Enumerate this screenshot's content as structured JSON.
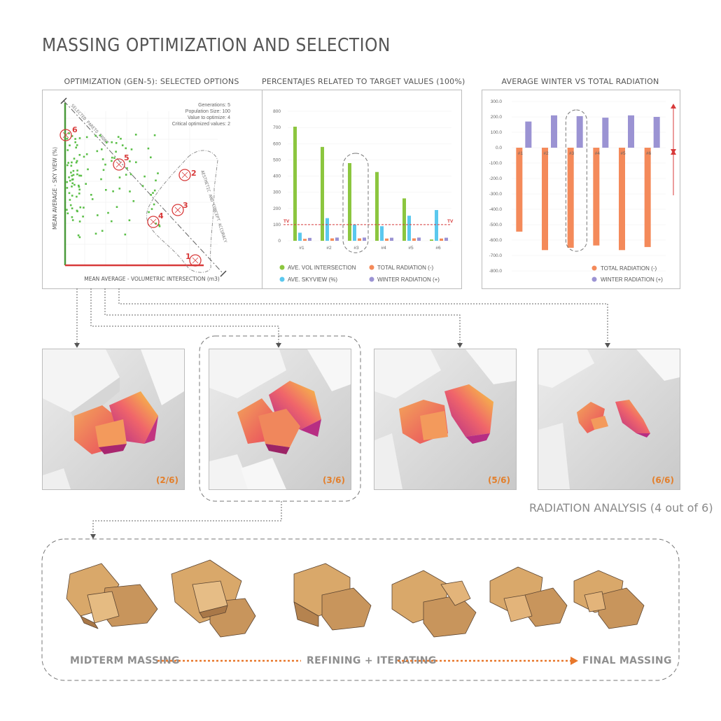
{
  "title": "MASSING OPTIMIZATION AND SELECTION",
  "panels": {
    "scatter": {
      "title": "OPTIMIZATION (GEN-5): SELECTED OPTIONS",
      "info": [
        "Generations: 5",
        "Population Size: 100",
        "Value to optimize: 4",
        "Critical optimized values: 2"
      ],
      "pareto_label": "SELECTED PARETO FRONT",
      "aesthetic_label": "AESTHETIC AND CONCEPT ACCURACY",
      "xlabel": "MEAN AVERAGE - VOLUMETRIC INTERSECTION (m3)",
      "ylabel": "MEAN AVERAGE - SKY VIEW (%)",
      "option_labels": [
        "1",
        "2",
        "3",
        "4",
        "5",
        "6"
      ]
    },
    "percent": {
      "title": "PERCENTAJES RELATED TO TARGET VALUES (100%)"
    },
    "radiation": {
      "title": "AVERAGE WINTER VS TOTAL RADIATION"
    }
  },
  "chart_data": [
    {
      "type": "bar",
      "title": "PERCENTAJES RELATED TO TARGET VALUES (100%)",
      "categories": [
        "#1",
        "#2",
        "#3",
        "#4",
        "#5",
        "#6"
      ],
      "series": [
        {
          "name": "AVE. VOL INTERSECTION",
          "values": [
            705,
            580,
            480,
            425,
            262,
            8
          ]
        },
        {
          "name": "AVE. SKYVIEW (%)",
          "values": [
            50,
            140,
            100,
            90,
            155,
            190
          ]
        },
        {
          "name": "TOTAL RADIATION (-)",
          "values": [
            12,
            15,
            15,
            14,
            15,
            14
          ]
        },
        {
          "name": "WINTER RADIATION (+)",
          "values": [
            18,
            20,
            20,
            19,
            20,
            19
          ]
        }
      ],
      "yticks": [
        0,
        100,
        200,
        300,
        400,
        500,
        600,
        700,
        800
      ],
      "ylim": [
        0,
        800
      ],
      "target_line": {
        "label": "TV",
        "value": 100
      },
      "legend": "bottom",
      "colors": [
        "#8cc63f",
        "#5bc8ee",
        "#f48a5a",
        "#9b93d3"
      ]
    },
    {
      "type": "bar",
      "title": "AVERAGE WINTER VS TOTAL RADIATION",
      "categories": [
        "#1",
        "#2",
        "#3",
        "#4",
        "#5",
        "#6"
      ],
      "series": [
        {
          "name": "TOTAL RADIATION (-)",
          "values": [
            -545,
            -665,
            -650,
            -635,
            -665,
            -645
          ]
        },
        {
          "name": "WINTER RADIATION (+)",
          "values": [
            170,
            210,
            205,
            195,
            210,
            200
          ]
        }
      ],
      "yticks": [
        300,
        200,
        100,
        0,
        -100,
        -200,
        -300,
        -400,
        -500,
        -600,
        -700,
        -800
      ],
      "ylim": [
        -800,
        300
      ],
      "legend": "bottom-right",
      "colors": [
        "#f48a5a",
        "#9b93d3"
      ]
    }
  ],
  "bar_labels": {
    "percent": [
      "800",
      "700",
      "600",
      "500",
      "400",
      "300",
      "200",
      "100",
      "0"
    ],
    "radiation": [
      "300.0",
      "200.0",
      "100.0",
      "0.0",
      "-100.0",
      "-200.0",
      "-300.0",
      "-400.0",
      "-500.0",
      "-600.0",
      "-700.0",
      "-800.0"
    ]
  },
  "thumbs": [
    {
      "label": "(2/6)"
    },
    {
      "label": "(3/6)"
    },
    {
      "label": "(5/6)"
    },
    {
      "label": "(6/6)"
    }
  ],
  "radiation_caption": "RADIATION ANALYSIS (4 out of 6)",
  "flow": {
    "start": "MIDTERM MASSING",
    "middle": "REFINING + ITERATING",
    "end": "FINAL MASSING"
  }
}
